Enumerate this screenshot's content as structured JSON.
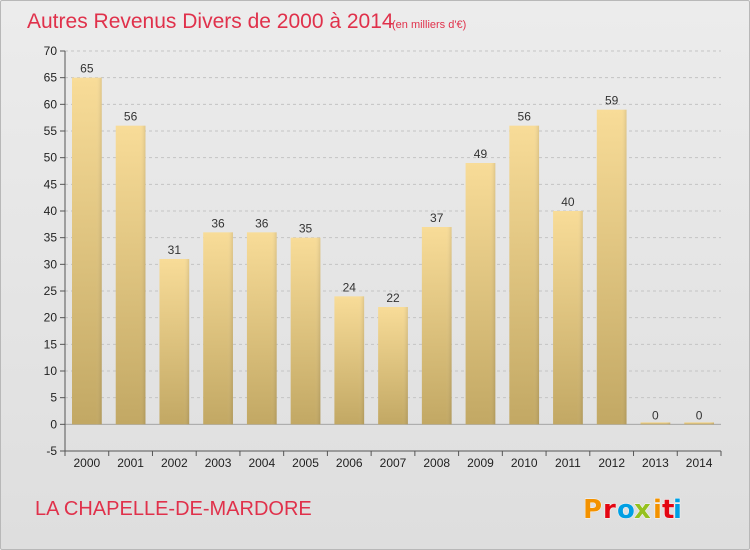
{
  "chart_data": {
    "type": "bar",
    "title": "Autres Revenus Divers de 2000 à 2014",
    "subtitle": "(en milliers d'€)",
    "categories": [
      "2000",
      "2001",
      "2002",
      "2003",
      "2004",
      "2005",
      "2006",
      "2007",
      "2008",
      "2009",
      "2010",
      "2011",
      "2012",
      "2013",
      "2014"
    ],
    "values": [
      65,
      56,
      31,
      36,
      36,
      35,
      24,
      22,
      37,
      49,
      56,
      40,
      59,
      0,
      0
    ],
    "ylim": [
      -5,
      70
    ],
    "yticks": [
      -5,
      0,
      5,
      10,
      15,
      20,
      25,
      30,
      35,
      40,
      45,
      50,
      55,
      60,
      65,
      70
    ],
    "grid": true,
    "bar_color_top": "#f8dc98",
    "bar_color_bottom": "#c2a864"
  },
  "footer": {
    "commune": "LA CHAPELLE-DE-MARDORE",
    "logo_text": "Proxiti",
    "logo_colors": [
      "#f39200",
      "#e30613",
      "#009fe3",
      "#95c11f",
      "#f39200",
      "#e30613",
      "#009fe3"
    ]
  }
}
